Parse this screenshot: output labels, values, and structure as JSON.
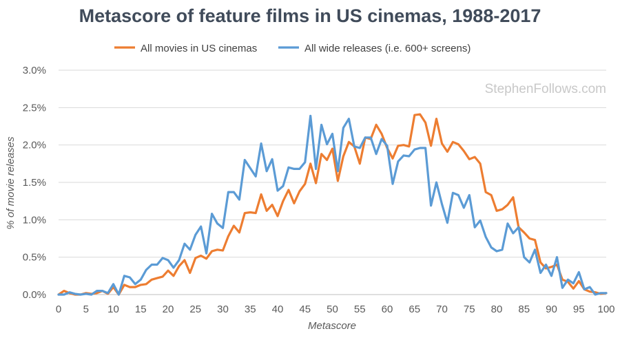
{
  "chart_data": {
    "type": "line",
    "title": "Metascore of feature films in US cinemas, 1988-2017",
    "xlabel": "Metascore",
    "ylabel": "% of movie releases",
    "xlim": [
      0,
      100
    ],
    "ylim": [
      0,
      3.0
    ],
    "x_ticks": [
      0,
      5,
      10,
      15,
      20,
      25,
      30,
      35,
      40,
      45,
      50,
      55,
      60,
      65,
      70,
      75,
      80,
      85,
      90,
      95,
      100
    ],
    "y_ticks": [
      "0.0%",
      "0.5%",
      "1.0%",
      "1.5%",
      "2.0%",
      "2.5%",
      "3.0%"
    ],
    "grid": true,
    "legend_position": "top",
    "watermark": "StephenFollows.com",
    "series": [
      {
        "name": "All movies in US cinemas",
        "color": "#ed7d31",
        "values": [
          0.0,
          0.05,
          0.02,
          0.0,
          0.0,
          0.02,
          0.01,
          0.02,
          0.05,
          0.01,
          0.1,
          0.0,
          0.13,
          0.1,
          0.1,
          0.13,
          0.14,
          0.2,
          0.22,
          0.24,
          0.32,
          0.25,
          0.38,
          0.46,
          0.29,
          0.49,
          0.52,
          0.48,
          0.58,
          0.6,
          0.59,
          0.78,
          0.92,
          0.83,
          1.09,
          1.1,
          1.09,
          1.34,
          1.12,
          1.2,
          1.05,
          1.25,
          1.4,
          1.22,
          1.38,
          1.48,
          1.75,
          1.49,
          1.88,
          1.8,
          1.95,
          1.52,
          1.85,
          2.04,
          1.98,
          1.75,
          2.1,
          2.08,
          2.27,
          2.15,
          1.96,
          1.82,
          1.99,
          2.0,
          1.98,
          2.4,
          2.41,
          2.3,
          1.99,
          2.35,
          2.02,
          1.91,
          2.04,
          2.01,
          1.92,
          1.81,
          1.84,
          1.75,
          1.37,
          1.33,
          1.12,
          1.14,
          1.2,
          1.3,
          0.9,
          0.83,
          0.75,
          0.73,
          0.43,
          0.35,
          0.37,
          0.4,
          0.2,
          0.17,
          0.08,
          0.18,
          0.07,
          0.04,
          0.03,
          0.01,
          0.02
        ]
      },
      {
        "name": "All wide releases (i.e. 600+ screens)",
        "color": "#5b9bd5",
        "values": [
          0.0,
          0.0,
          0.03,
          0.01,
          0.0,
          0.01,
          0.0,
          0.05,
          0.05,
          0.02,
          0.14,
          0.0,
          0.25,
          0.23,
          0.14,
          0.2,
          0.33,
          0.4,
          0.4,
          0.49,
          0.46,
          0.36,
          0.46,
          0.68,
          0.6,
          0.8,
          0.91,
          0.55,
          1.08,
          0.95,
          0.89,
          1.37,
          1.37,
          1.27,
          1.8,
          1.69,
          1.58,
          2.02,
          1.65,
          1.81,
          1.39,
          1.45,
          1.7,
          1.68,
          1.68,
          1.77,
          2.39,
          1.68,
          2.27,
          2.01,
          2.15,
          1.65,
          2.23,
          2.35,
          1.98,
          1.96,
          2.1,
          2.1,
          1.88,
          2.08,
          1.99,
          1.48,
          1.78,
          1.86,
          1.85,
          1.94,
          1.96,
          1.96,
          1.19,
          1.5,
          1.21,
          0.96,
          1.36,
          1.33,
          1.16,
          1.33,
          0.9,
          0.99,
          0.77,
          0.63,
          0.58,
          0.6,
          0.95,
          0.82,
          0.9,
          0.5,
          0.43,
          0.6,
          0.29,
          0.4,
          0.25,
          0.5,
          0.09,
          0.2,
          0.15,
          0.3,
          0.07,
          0.1,
          0.0,
          0.02,
          0.02
        ]
      }
    ]
  }
}
